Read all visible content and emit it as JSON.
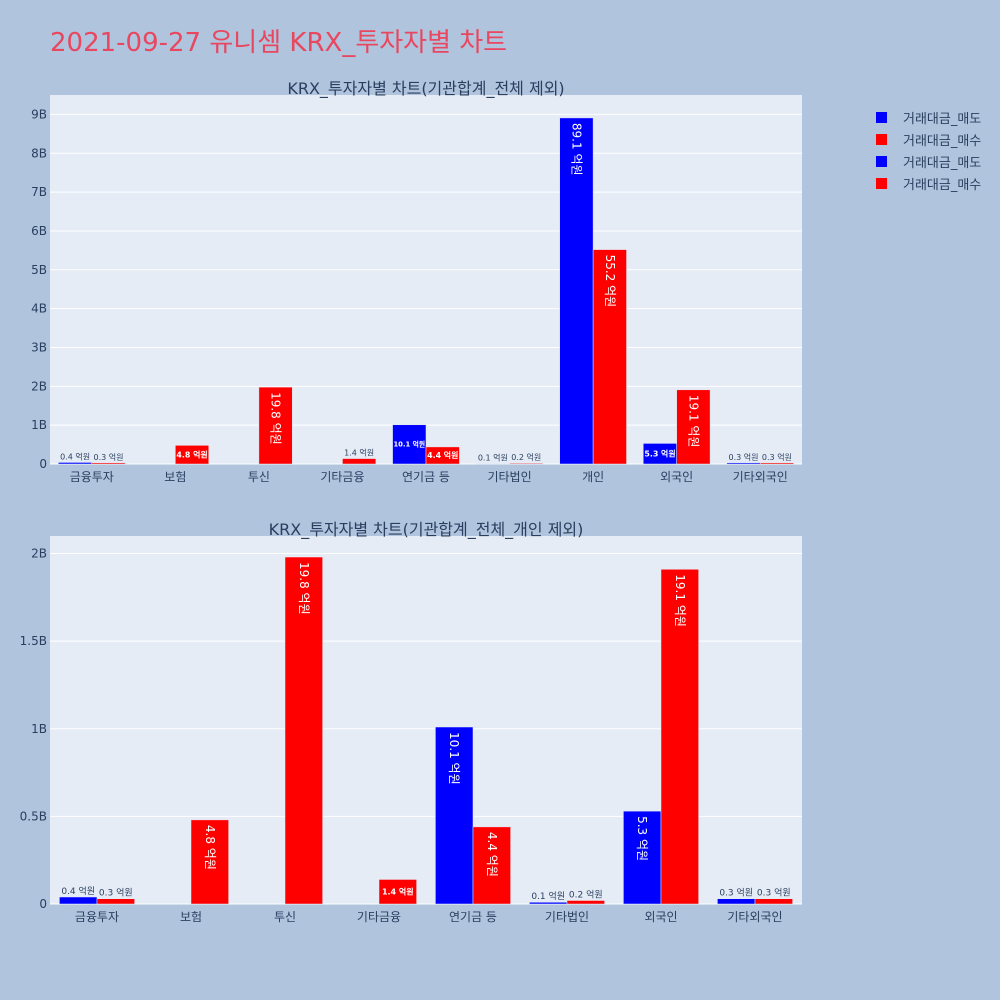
{
  "page": {
    "title": "2021-09-27 유니셈 KRX_투자자별 차트"
  },
  "legend": [
    {
      "label": "거래대금_매도",
      "color": "#0000ff"
    },
    {
      "label": "거래대금_매수",
      "color": "#ff0000"
    },
    {
      "label": "거래대금_매도",
      "color": "#0000ff"
    },
    {
      "label": "거래대금_매수",
      "color": "#ff0000"
    }
  ],
  "chart_data": [
    {
      "type": "bar",
      "title": "KRX_투자자별 차트(기관합계_전체 제외)",
      "categories": [
        "금융투자",
        "보험",
        "투신",
        "기타금융",
        "연기금 등",
        "기타법인",
        "개인",
        "외국인",
        "기타외국인"
      ],
      "ylim": [
        0,
        9500000000
      ],
      "yticks": [
        0,
        1000000000,
        2000000000,
        3000000000,
        4000000000,
        5000000000,
        6000000000,
        7000000000,
        8000000000,
        9000000000
      ],
      "ytick_labels": [
        "0",
        "1B",
        "2B",
        "3B",
        "4B",
        "5B",
        "6B",
        "7B",
        "8B",
        "9B"
      ],
      "grid": true,
      "series": [
        {
          "name": "거래대금_매도",
          "color": "#0000ff",
          "values": [
            40000000,
            0,
            0,
            0,
            1010000000,
            10000000,
            8910000000,
            530000000,
            30000000
          ],
          "labels": [
            "0.4 억원",
            "",
            "",
            "",
            "10.1 억원",
            "0.1 억원",
            "89.1 억원",
            "5.3 억원",
            "0.3 억원"
          ]
        },
        {
          "name": "거래대금_매수",
          "color": "#ff0000",
          "values": [
            30000000,
            480000000,
            1980000000,
            140000000,
            440000000,
            20000000,
            5520000000,
            1910000000,
            30000000
          ],
          "labels": [
            "0.3 억원",
            "4.8 억원",
            "19.8 억원",
            "1.4 억원",
            "4.4 억원",
            "0.2 억원",
            "55.2 억원",
            "19.1 억원",
            "0.3 억원"
          ]
        }
      ]
    },
    {
      "type": "bar",
      "title": "KRX_투자자별 차트(기관합계_전체_개인 제외)",
      "categories": [
        "금융투자",
        "보험",
        "투신",
        "기타금융",
        "연기금 등",
        "기타법인",
        "외국인",
        "기타외국인"
      ],
      "ylim": [
        0,
        2100000000
      ],
      "yticks": [
        0,
        500000000,
        1000000000,
        1500000000,
        2000000000
      ],
      "ytick_labels": [
        "0",
        "0.5B",
        "1B",
        "1.5B",
        "2B"
      ],
      "grid": true,
      "series": [
        {
          "name": "거래대금_매도",
          "color": "#0000ff",
          "values": [
            40000000,
            0,
            0,
            0,
            1010000000,
            10000000,
            530000000,
            30000000
          ],
          "labels": [
            "0.4 억원",
            "",
            "",
            "",
            "10.1 억원",
            "0.1 억원",
            "5.3 억원",
            "0.3 억원"
          ]
        },
        {
          "name": "거래대금_매수",
          "color": "#ff0000",
          "values": [
            30000000,
            480000000,
            1980000000,
            140000000,
            440000000,
            20000000,
            1910000000,
            30000000
          ],
          "labels": [
            "0.3 억원",
            "4.8 억원",
            "19.8 억원",
            "1.4 억원",
            "4.4 억원",
            "0.2 억원",
            "19.1 억원",
            "0.3 억원"
          ]
        }
      ]
    }
  ]
}
